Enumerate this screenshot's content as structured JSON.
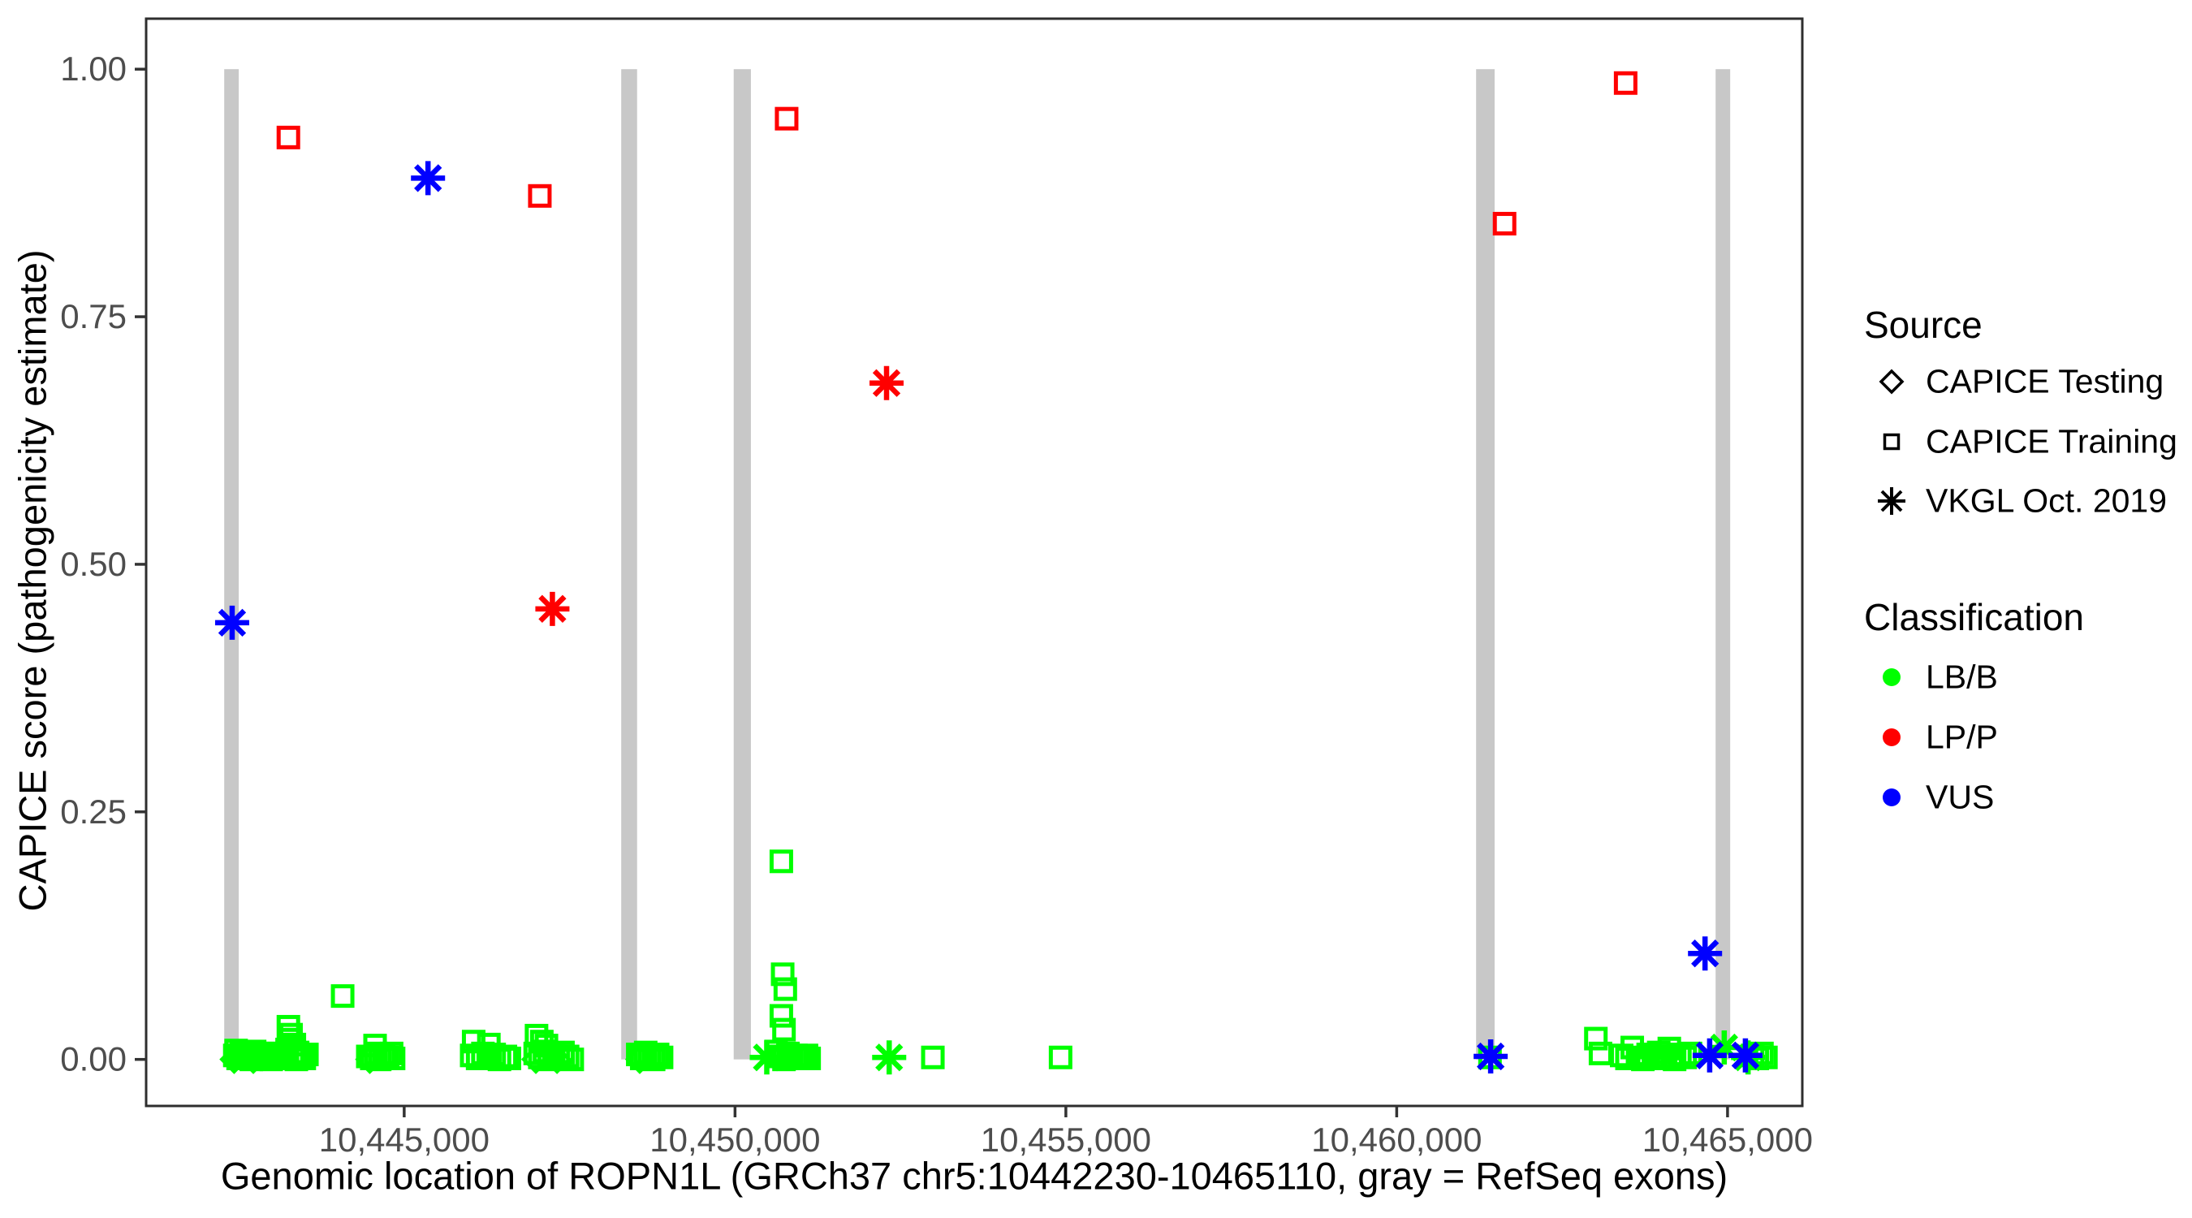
{
  "y_axis": {
    "title": "CAPICE score (pathogenicity estimate)",
    "ticks": [
      {
        "value": 1.0,
        "label": "1.00"
      },
      {
        "value": 0.75,
        "label": "0.75"
      },
      {
        "value": 0.5,
        "label": "0.50"
      },
      {
        "value": 0.25,
        "label": "0.25"
      },
      {
        "value": 0.0,
        "label": "0.00"
      }
    ]
  },
  "x_axis": {
    "title": "Genomic location of ROPN1L (GRCh37 chr5:10442230-10465110, gray = RefSeq exons)",
    "ticks": [
      {
        "value": 10445000,
        "label": "10,445,000"
      },
      {
        "value": 10450000,
        "label": "10,450,000"
      },
      {
        "value": 10455000,
        "label": "10,455,000"
      },
      {
        "value": 10460000,
        "label": "10,460,000"
      },
      {
        "value": 10465000,
        "label": "10,465,000"
      }
    ]
  },
  "legend": {
    "source": {
      "title": "Source",
      "items": [
        {
          "shape": "di",
          "label": "CAPICE Testing"
        },
        {
          "shape": "sq",
          "label": "CAPICE Training"
        },
        {
          "shape": "as",
          "label": "VKGL Oct. 2019"
        }
      ]
    },
    "classification": {
      "title": "Classification",
      "items": [
        {
          "color": "#00ff00",
          "label": "LB/B"
        },
        {
          "color": "#ff0000",
          "label": "LP/P"
        },
        {
          "color": "#0000ff",
          "label": "VUS"
        }
      ]
    }
  },
  "chart_data": {
    "type": "scatter",
    "xlabel": "Genomic location of ROPN1L (GRCh37 chr5:10442230-10465110, gray = RefSeq exons)",
    "ylabel": "CAPICE score (pathogenicity estimate)",
    "xlim": [
      10441100,
      10466130
    ],
    "ylim": [
      -0.047,
      1.051
    ],
    "grid": false,
    "legend_position": "right",
    "exon_color": "#c8c8c8",
    "exons": [
      [
        10442280,
        10442500
      ],
      [
        10448280,
        10448520
      ],
      [
        10449980,
        10450240
      ],
      [
        10461200,
        10461480
      ],
      [
        10464820,
        10465040
      ]
    ],
    "classes": {
      "LB/B": "#00ff00",
      "LP/P": "#ff0000",
      "VUS": "#0000ff"
    },
    "shapes": {
      "CAPICE Testing": "di",
      "CAPICE Training": "sq",
      "VKGL Oct. 2019": "as"
    },
    "points": [
      [
        10443250,
        0.931,
        "LP/P",
        "sq"
      ],
      [
        10447050,
        0.872,
        "LP/P",
        "sq"
      ],
      [
        10450780,
        0.95,
        "LP/P",
        "sq"
      ],
      [
        10461630,
        0.844,
        "LP/P",
        "sq"
      ],
      [
        10463460,
        0.986,
        "LP/P",
        "sq"
      ],
      [
        10447240,
        0.455,
        "LP/P",
        "as"
      ],
      [
        10452290,
        0.683,
        "LP/P",
        "as"
      ],
      [
        10442400,
        0.441,
        "VUS",
        "as"
      ],
      [
        10445360,
        0.89,
        "VUS",
        "as"
      ],
      [
        10464660,
        0.107,
        "VUS",
        "as"
      ],
      [
        10461420,
        0.003,
        "VUS",
        "as"
      ],
      [
        10464730,
        0.004,
        "VUS",
        "as"
      ],
      [
        10465270,
        0.004,
        "VUS",
        "as"
      ],
      [
        10442440,
        0.004,
        "LB/B",
        "sq"
      ],
      [
        10442490,
        0.001,
        "LB/B",
        "sq"
      ],
      [
        10442540,
        0.007,
        "LB/B",
        "sq"
      ],
      [
        10442590,
        0.002,
        "LB/B",
        "sq"
      ],
      [
        10442640,
        0.005,
        "LB/B",
        "sq"
      ],
      [
        10442690,
        0.0,
        "LB/B",
        "sq"
      ],
      [
        10442740,
        0.008,
        "LB/B",
        "sq"
      ],
      [
        10442790,
        0.002,
        "LB/B",
        "sq"
      ],
      [
        10442840,
        0.005,
        "LB/B",
        "sq"
      ],
      [
        10442890,
        0.001,
        "LB/B",
        "sq"
      ],
      [
        10442940,
        0.006,
        "LB/B",
        "sq"
      ],
      [
        10442990,
        0.0,
        "LB/B",
        "sq"
      ],
      [
        10443040,
        0.003,
        "LB/B",
        "sq"
      ],
      [
        10443090,
        0.006,
        "LB/B",
        "sq"
      ],
      [
        10443120,
        0.001,
        "LB/B",
        "sq"
      ],
      [
        10442460,
        0.009,
        "LB/B",
        "sq"
      ],
      [
        10442430,
        0.0,
        "LB/B",
        "di"
      ],
      [
        10442720,
        0.0,
        "LB/B",
        "di"
      ],
      [
        10443250,
        0.033,
        "LB/B",
        "sq"
      ],
      [
        10443290,
        0.025,
        "LB/B",
        "sq"
      ],
      [
        10443270,
        0.02,
        "LB/B",
        "sq"
      ],
      [
        10443340,
        0.015,
        "LB/B",
        "sq"
      ],
      [
        10443230,
        0.01,
        "LB/B",
        "sq"
      ],
      [
        10443390,
        0.007,
        "LB/B",
        "sq"
      ],
      [
        10443310,
        0.004,
        "LB/B",
        "sq"
      ],
      [
        10443440,
        0.002,
        "LB/B",
        "sq"
      ],
      [
        10443370,
        0.0,
        "LB/B",
        "sq"
      ],
      [
        10443490,
        0.001,
        "LB/B",
        "sq"
      ],
      [
        10443530,
        0.005,
        "LB/B",
        "sq"
      ],
      [
        10444070,
        0.064,
        "LB/B",
        "sq"
      ],
      [
        10444560,
        0.014,
        "LB/B",
        "sq"
      ],
      [
        10444450,
        0.003,
        "LB/B",
        "sq"
      ],
      [
        10444510,
        0.001,
        "LB/B",
        "sq"
      ],
      [
        10444570,
        0.006,
        "LB/B",
        "sq"
      ],
      [
        10444630,
        0.0,
        "LB/B",
        "sq"
      ],
      [
        10444690,
        0.004,
        "LB/B",
        "sq"
      ],
      [
        10444750,
        0.002,
        "LB/B",
        "sq"
      ],
      [
        10444810,
        0.006,
        "LB/B",
        "sq"
      ],
      [
        10444840,
        0.001,
        "LB/B",
        "sq"
      ],
      [
        10444480,
        0.0,
        "LB/B",
        "di"
      ],
      [
        10446050,
        0.018,
        "LB/B",
        "sq"
      ],
      [
        10446280,
        0.015,
        "LB/B",
        "sq"
      ],
      [
        10446020,
        0.004,
        "LB/B",
        "sq"
      ],
      [
        10446110,
        0.001,
        "LB/B",
        "sq"
      ],
      [
        10446190,
        0.006,
        "LB/B",
        "sq"
      ],
      [
        10446270,
        0.002,
        "LB/B",
        "sq"
      ],
      [
        10446360,
        0.005,
        "LB/B",
        "sq"
      ],
      [
        10446440,
        0.0,
        "LB/B",
        "sq"
      ],
      [
        10446530,
        0.003,
        "LB/B",
        "sq"
      ],
      [
        10446590,
        0.001,
        "LB/B",
        "sq"
      ],
      [
        10447000,
        0.024,
        "LB/B",
        "sq"
      ],
      [
        10447080,
        0.018,
        "LB/B",
        "sq"
      ],
      [
        10447150,
        0.014,
        "LB/B",
        "sq"
      ],
      [
        10446980,
        0.006,
        "LB/B",
        "sq"
      ],
      [
        10447050,
        0.002,
        "LB/B",
        "sq"
      ],
      [
        10447120,
        0.008,
        "LB/B",
        "sq"
      ],
      [
        10447190,
        0.0,
        "LB/B",
        "sq"
      ],
      [
        10447260,
        0.005,
        "LB/B",
        "sq"
      ],
      [
        10447330,
        0.001,
        "LB/B",
        "sq"
      ],
      [
        10447400,
        0.007,
        "LB/B",
        "sq"
      ],
      [
        10447470,
        0.003,
        "LB/B",
        "sq"
      ],
      [
        10447540,
        0.0,
        "LB/B",
        "sq"
      ],
      [
        10446990,
        0.0,
        "LB/B",
        "di"
      ],
      [
        10447310,
        0.0,
        "LB/B",
        "di"
      ],
      [
        10448530,
        0.005,
        "LB/B",
        "sq"
      ],
      [
        10448590,
        0.001,
        "LB/B",
        "sq"
      ],
      [
        10448650,
        0.007,
        "LB/B",
        "sq"
      ],
      [
        10448710,
        0.003,
        "LB/B",
        "sq"
      ],
      [
        10448770,
        0.0,
        "LB/B",
        "sq"
      ],
      [
        10448830,
        0.005,
        "LB/B",
        "sq"
      ],
      [
        10448890,
        0.002,
        "LB/B",
        "sq"
      ],
      [
        10448560,
        0.0,
        "LB/B",
        "di"
      ],
      [
        10450480,
        0.002,
        "LB/B",
        "as"
      ],
      [
        10450700,
        0.2,
        "LB/B",
        "sq"
      ],
      [
        10450720,
        0.086,
        "LB/B",
        "sq"
      ],
      [
        10450760,
        0.071,
        "LB/B",
        "sq"
      ],
      [
        10450700,
        0.044,
        "LB/B",
        "sq"
      ],
      [
        10450740,
        0.03,
        "LB/B",
        "sq"
      ],
      [
        10450620,
        0.008,
        "LB/B",
        "sq"
      ],
      [
        10450680,
        0.003,
        "LB/B",
        "sq"
      ],
      [
        10450740,
        0.0,
        "LB/B",
        "sq"
      ],
      [
        10450800,
        0.006,
        "LB/B",
        "sq"
      ],
      [
        10450860,
        0.002,
        "LB/B",
        "sq"
      ],
      [
        10450920,
        0.004,
        "LB/B",
        "sq"
      ],
      [
        10450960,
        0.001,
        "LB/B",
        "sq"
      ],
      [
        10450990,
        0.003,
        "LB/B",
        "sq"
      ],
      [
        10451030,
        0.001,
        "LB/B",
        "sq"
      ],
      [
        10451080,
        0.004,
        "LB/B",
        "sq"
      ],
      [
        10451120,
        0.001,
        "LB/B",
        "sq"
      ],
      [
        10452330,
        0.002,
        "LB/B",
        "as"
      ],
      [
        10452990,
        0.002,
        "LB/B",
        "sq"
      ],
      [
        10454920,
        0.002,
        "LB/B",
        "sq"
      ],
      [
        10461410,
        0.002,
        "LB/B",
        "sq"
      ],
      [
        10463010,
        0.021,
        "LB/B",
        "sq"
      ],
      [
        10463080,
        0.006,
        "LB/B",
        "sq"
      ],
      [
        10463400,
        0.004,
        "LB/B",
        "sq"
      ],
      [
        10463480,
        0.001,
        "LB/B",
        "sq"
      ],
      [
        10463560,
        0.012,
        "LB/B",
        "sq"
      ],
      [
        10463640,
        0.002,
        "LB/B",
        "sq"
      ],
      [
        10463720,
        0.0,
        "LB/B",
        "sq"
      ],
      [
        10463800,
        0.005,
        "LB/B",
        "sq"
      ],
      [
        10463880,
        0.001,
        "LB/B",
        "sq"
      ],
      [
        10463960,
        0.007,
        "LB/B",
        "sq"
      ],
      [
        10464040,
        0.003,
        "LB/B",
        "sq"
      ],
      [
        10464120,
        0.011,
        "LB/B",
        "sq"
      ],
      [
        10464200,
        0.0,
        "LB/B",
        "sq"
      ],
      [
        10464280,
        0.005,
        "LB/B",
        "sq"
      ],
      [
        10464360,
        0.002,
        "LB/B",
        "sq"
      ],
      [
        10464440,
        0.006,
        "LB/B",
        "sq"
      ],
      [
        10464950,
        0.012,
        "LB/B",
        "as"
      ],
      [
        10465310,
        0.002,
        "LB/B",
        "as"
      ],
      [
        10465380,
        0.004,
        "LB/B",
        "sq"
      ],
      [
        10465450,
        0.001,
        "LB/B",
        "sq"
      ],
      [
        10465520,
        0.006,
        "LB/B",
        "sq"
      ],
      [
        10465580,
        0.002,
        "LB/B",
        "sq"
      ]
    ]
  },
  "style": {
    "border_color": "#2e2e2e",
    "tick_color": "#333333",
    "tick_label_color": "#4d4d4d"
  }
}
